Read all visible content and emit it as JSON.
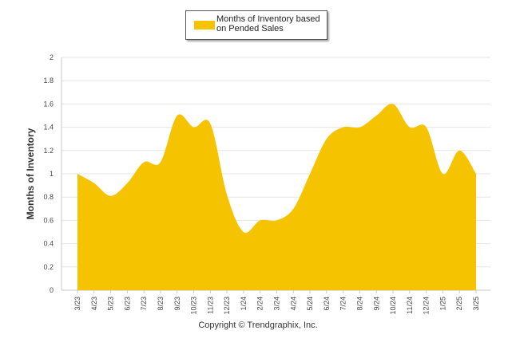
{
  "legend": {
    "label": "Months of Inventory based on Pended Sales",
    "swatch_color": "#F5C300"
  },
  "footer": {
    "copyright": "Copyright © Trendgraphix, Inc."
  },
  "chart_data": {
    "type": "area",
    "title": "",
    "xlabel": "",
    "ylabel": "Months of Inventory",
    "ylim": [
      0,
      2
    ],
    "yticks": [
      "0",
      "0.2",
      "0.4",
      "0.6",
      "0.8",
      "1",
      "1.2",
      "1.4",
      "1.6",
      "1.8",
      "2"
    ],
    "grid": true,
    "legend_position": "top-center",
    "categories": [
      "3/23",
      "4/23",
      "5/23",
      "6/23",
      "7/23",
      "8/23",
      "9/23",
      "10/23",
      "11/23",
      "12/23",
      "1/24",
      "2/24",
      "3/24",
      "4/24",
      "5/24",
      "6/24",
      "7/24",
      "8/24",
      "9/24",
      "10/24",
      "11/24",
      "12/24",
      "1/25",
      "2/25",
      "3/25"
    ],
    "series": [
      {
        "name": "Months of Inventory based on Pended Sales",
        "color": "#F5C300",
        "values": [
          1.0,
          0.92,
          0.81,
          0.92,
          1.1,
          1.1,
          1.5,
          1.4,
          1.43,
          0.82,
          0.5,
          0.6,
          0.6,
          0.7,
          1.0,
          1.3,
          1.4,
          1.4,
          1.5,
          1.6,
          1.4,
          1.4,
          1.0,
          1.2,
          1.0
        ]
      }
    ]
  }
}
